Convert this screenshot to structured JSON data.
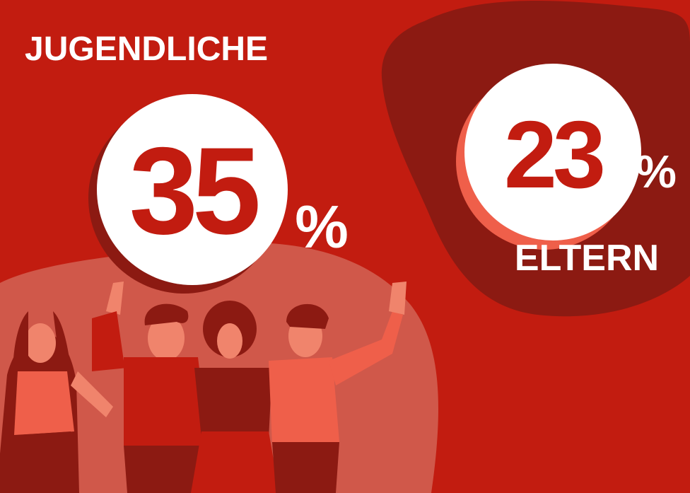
{
  "jugendliche": {
    "label": "JUGENDLICHE",
    "value": 35,
    "unit": "%"
  },
  "eltern": {
    "label": "ELTERN",
    "value": 23,
    "unit": "%"
  }
}
